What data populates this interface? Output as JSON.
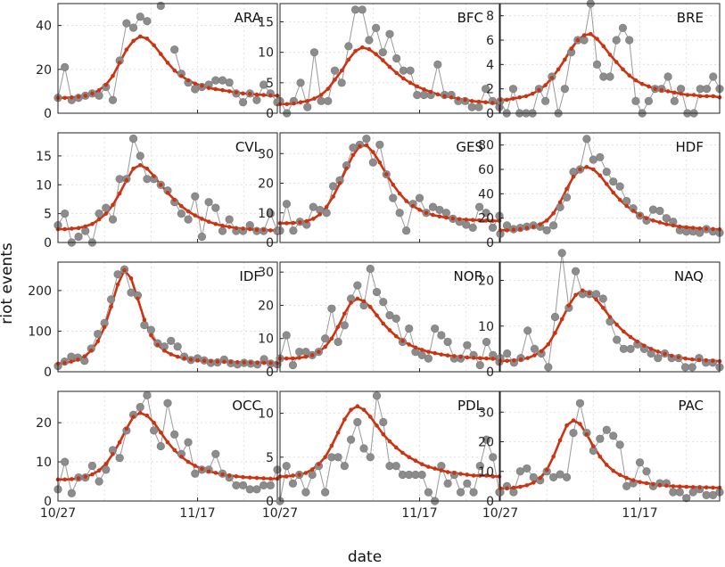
{
  "chart_data": {
    "type": "line",
    "ylabel": "riot events",
    "xlabel": "date",
    "x_tick_labels": [
      "10/27",
      "11/17"
    ],
    "x_tick_days": [
      0,
      21
    ],
    "day_range": [
      0,
      33
    ],
    "legend": "none",
    "grid": true,
    "series_names": [
      "observed",
      "fitted"
    ],
    "colors": {
      "observed": "#8c8c8c",
      "observed_line": "#999999",
      "fit": "#cc3311"
    },
    "panels": [
      {
        "name": "ARA",
        "ylim": [
          0,
          50
        ],
        "yticks": [
          0,
          20,
          40
        ],
        "observed": [
          7,
          21,
          6,
          7,
          8,
          9,
          8,
          12,
          6,
          24,
          41,
          39,
          44,
          42,
          null,
          49,
          null,
          29,
          18,
          14,
          11,
          12,
          13,
          15,
          15,
          14,
          9,
          5,
          9,
          6,
          13,
          9,
          5
        ],
        "fit": [
          7,
          7,
          7.2,
          7.5,
          8,
          9,
          10.5,
          13,
          17,
          23,
          29,
          33,
          35,
          34,
          31,
          27,
          23,
          19.5,
          17,
          15,
          13.5,
          12.5,
          11.5,
          11,
          10.5,
          10,
          9.5,
          9,
          8.8,
          8.5,
          8.3,
          8.1,
          8
        ]
      },
      {
        "name": "BFC",
        "ylim": [
          0,
          18
        ],
        "yticks": [
          0,
          5,
          10,
          15
        ],
        "observed": [
          2,
          0,
          2,
          5,
          1,
          10,
          2,
          2,
          7,
          5,
          11,
          17,
          17,
          12,
          14,
          10,
          13,
          9,
          7,
          7,
          3,
          3,
          3,
          8,
          3,
          3,
          2,
          2,
          1,
          1,
          4,
          2,
          1
        ],
        "fit": [
          1.5,
          1.5,
          1.6,
          1.8,
          2,
          2.4,
          3,
          4,
          5.5,
          7,
          8.8,
          10.2,
          10.8,
          10.5,
          9.7,
          8.7,
          7.6,
          6.6,
          5.7,
          5,
          4.4,
          3.9,
          3.5,
          3.1,
          2.8,
          2.6,
          2.4,
          2.2,
          2,
          1.9,
          1.8,
          1.7,
          1.6
        ]
      },
      {
        "name": "BRE",
        "ylim": [
          0,
          9
        ],
        "yticks": [
          0,
          2,
          4,
          6,
          8
        ],
        "observed": [
          1,
          0,
          2,
          0,
          0,
          0,
          2,
          1,
          3,
          0,
          2,
          5,
          6,
          6,
          9,
          4,
          3,
          3,
          6,
          7,
          6,
          1,
          0,
          1,
          2,
          2,
          3,
          1,
          2,
          0,
          0,
          2,
          2,
          3,
          2
        ],
        "fit": [
          1.1,
          1.1,
          1.2,
          1.3,
          1.4,
          1.6,
          1.9,
          2.3,
          2.9,
          3.6,
          4.4,
          5.3,
          6,
          6.4,
          6.5,
          6.1,
          5.5,
          4.8,
          4.2,
          3.6,
          3.1,
          2.7,
          2.4,
          2.2,
          2,
          1.9,
          1.8,
          1.7,
          1.6,
          1.5,
          1.5,
          1.4,
          1.4,
          1.4,
          1.3
        ]
      },
      {
        "name": "CVL",
        "ylim": [
          0,
          19
        ],
        "yticks": [
          0,
          5,
          10,
          15
        ],
        "observed": [
          3,
          5,
          0,
          1,
          2,
          0,
          5,
          6,
          4,
          11,
          11,
          18,
          15,
          11,
          11,
          10,
          9,
          7,
          5,
          4,
          8,
          1,
          7,
          6,
          2,
          4,
          2,
          2,
          3,
          2,
          2,
          5,
          2
        ],
        "fit": [
          2.3,
          2.3,
          2.4,
          2.5,
          2.8,
          3.2,
          4,
          5,
          6.5,
          8.5,
          10.8,
          12.8,
          13.4,
          12.8,
          11.5,
          10,
          8.6,
          7.4,
          6.3,
          5.4,
          4.7,
          4.1,
          3.6,
          3.2,
          2.9,
          2.7,
          2.5,
          2.4,
          2.3,
          2.2,
          2.2,
          2.1,
          2.1
        ]
      },
      {
        "name": "GES",
        "ylim": [
          0,
          37
        ],
        "yticks": [
          0,
          10,
          20,
          30
        ],
        "observed": [
          4,
          13,
          4,
          7,
          6,
          12,
          11,
          10,
          19,
          21,
          26,
          32,
          33,
          35,
          27,
          33,
          23,
          15,
          10,
          4,
          13,
          15,
          10,
          12,
          11,
          10,
          8,
          7,
          6,
          5,
          12,
          10,
          5,
          9
        ],
        "fit": [
          6.5,
          6.5,
          6.6,
          6.8,
          7.2,
          8,
          9.5,
          12,
          15.5,
          20,
          25,
          29.5,
          32.5,
          32.8,
          30.5,
          27,
          23,
          19.5,
          16.5,
          14,
          12.3,
          11,
          10,
          9.3,
          8.8,
          8.4,
          8.1,
          7.9,
          7.7,
          7.6,
          7.5,
          7.4,
          7.3,
          7.3
        ]
      },
      {
        "name": "HDF",
        "ylim": [
          0,
          90
        ],
        "yticks": [
          0,
          20,
          40,
          60,
          80
        ],
        "observed": [
          7,
          14,
          11,
          12,
          13,
          14,
          13,
          10,
          14,
          29,
          37,
          58,
          60,
          85,
          68,
          70,
          58,
          50,
          46,
          34,
          28,
          22,
          18,
          27,
          26,
          20,
          17,
          10,
          9,
          9,
          8,
          11,
          9,
          8
        ],
        "fit": [
          10,
          10,
          10.5,
          11,
          12,
          13,
          15,
          18,
          24,
          33,
          44,
          54,
          60,
          62,
          60,
          55,
          48,
          41,
          35,
          30,
          26,
          22.5,
          20,
          18,
          16.5,
          15,
          14,
          13,
          12.5,
          12,
          11.5,
          11.2,
          11,
          10.8
        ]
      },
      {
        "name": "IDF",
        "ylim": [
          0,
          270
        ],
        "yticks": [
          0,
          100,
          200
        ],
        "observed": [
          14,
          25,
          37,
          35,
          27,
          57,
          93,
          120,
          178,
          240,
          252,
          195,
          188,
          115,
          103,
          70,
          62,
          76,
          62,
          37,
          29,
          33,
          28,
          22,
          23,
          30,
          21,
          18,
          22,
          20,
          18,
          31,
          20,
          18
        ],
        "fit": [
          20,
          22,
          25,
          30,
          38,
          52,
          75,
          110,
          160,
          215,
          250,
          230,
          180,
          128,
          90,
          66,
          52,
          43,
          37,
          33,
          30,
          28,
          27,
          26,
          25,
          24.5,
          24,
          23.5,
          23,
          22.5,
          22.2,
          22,
          21.8,
          21.6
        ]
      },
      {
        "name": "NOR",
        "ylim": [
          0,
          33
        ],
        "yticks": [
          0,
          10,
          20,
          30
        ],
        "observed": [
          4,
          11,
          2,
          6,
          6,
          5,
          6,
          10,
          19,
          9,
          14,
          22,
          26,
          20,
          31,
          24,
          21,
          17,
          16,
          9,
          13,
          6,
          5,
          4,
          13,
          11,
          9,
          4,
          4,
          8,
          5,
          2,
          9,
          5,
          3
        ],
        "fit": [
          4,
          4,
          4,
          4.2,
          4.5,
          5,
          6,
          7.5,
          10,
          13.5,
          17.5,
          20.8,
          22,
          21.2,
          19.5,
          17,
          14.5,
          12.5,
          10.7,
          9.3,
          8.2,
          7.3,
          6.6,
          6,
          5.6,
          5.2,
          4.9,
          4.7,
          4.5,
          4.3,
          4.2,
          4.1,
          4,
          3.9,
          3.9
        ]
      },
      {
        "name": "NAQ",
        "ylim": [
          0,
          24
        ],
        "yticks": [
          0,
          10,
          20
        ],
        "observed": [
          3,
          4,
          2,
          3,
          9,
          5,
          4,
          1,
          12,
          26,
          14,
          22,
          17,
          17,
          17,
          16,
          11,
          7,
          5,
          5,
          6,
          5,
          4,
          3,
          4,
          3,
          3,
          1,
          1,
          3,
          2,
          2,
          1
        ],
        "fit": [
          2.4,
          2.4,
          2.5,
          2.7,
          3,
          3.6,
          4.5,
          6,
          8.5,
          11.5,
          14.5,
          16.8,
          17.8,
          17.2,
          15.8,
          14,
          12,
          10.3,
          8.8,
          7.6,
          6.6,
          5.7,
          5,
          4.4,
          3.9,
          3.5,
          3.2,
          2.9,
          2.7,
          2.6,
          2.5,
          2.4,
          2.3
        ]
      },
      {
        "name": "OCC",
        "ylim": [
          0,
          28
        ],
        "yticks": [
          0,
          10,
          20
        ],
        "observed": [
          3,
          10,
          2,
          6,
          6,
          9,
          5,
          8,
          13,
          11,
          18,
          22,
          24,
          27,
          18,
          14,
          25,
          17,
          12,
          15,
          7,
          8,
          8,
          12,
          7,
          6,
          4,
          4,
          3,
          3,
          4,
          4,
          8
        ],
        "fit": [
          5.5,
          5.5,
          5.6,
          5.8,
          6.2,
          6.8,
          7.8,
          9.5,
          12,
          15,
          18.5,
          21.5,
          22.5,
          21.8,
          20,
          17.5,
          15,
          13,
          11.3,
          10,
          9,
          8.2,
          7.6,
          7.2,
          6.8,
          6.5,
          6.3,
          6.1,
          6,
          5.9,
          5.8,
          5.7,
          5.7
        ]
      },
      {
        "name": "PDL",
        "ylim": [
          0,
          12.5
        ],
        "yticks": [
          0,
          5,
          10
        ],
        "observed": [
          0,
          4,
          2,
          3,
          1,
          3,
          4,
          1,
          5,
          5,
          4,
          7,
          9,
          6,
          5,
          12,
          9,
          4,
          4,
          3,
          3,
          3,
          3,
          1,
          0,
          4,
          2,
          3,
          1,
          2,
          1,
          4,
          7,
          5,
          1
        ],
        "fit": [
          2.8,
          2.8,
          2.9,
          3,
          3.2,
          3.6,
          4.2,
          5,
          6.3,
          7.8,
          9.3,
          10.4,
          10.8,
          10.4,
          9.6,
          8.6,
          7.6,
          6.8,
          6.1,
          5.5,
          5,
          4.6,
          4.2,
          3.9,
          3.7,
          3.5,
          3.3,
          3.2,
          3.1,
          3,
          2.9,
          2.9,
          2.9,
          2.8,
          2.8
        ]
      },
      {
        "name": "PAC",
        "ylim": [
          0,
          37
        ],
        "yticks": [
          0,
          10,
          20,
          30
        ],
        "observed": [
          3,
          5,
          3,
          10,
          11,
          8,
          7,
          10,
          8,
          9,
          8,
          23,
          33,
          23,
          17,
          21,
          24,
          22,
          19,
          5,
          6,
          13,
          10,
          5,
          6,
          6,
          3,
          3,
          1,
          3,
          4,
          2,
          2,
          3
        ],
        "fit": [
          4.3,
          4.3,
          4.5,
          4.8,
          5.3,
          6.2,
          7.8,
          10.5,
          15,
          20.5,
          25.5,
          27.2,
          26,
          22.5,
          18.5,
          15,
          12.2,
          10.2,
          8.8,
          7.8,
          7,
          6.4,
          6,
          5.7,
          5.4,
          5.2,
          5,
          4.9,
          4.8,
          4.7,
          4.6,
          4.6,
          4.5,
          4.5
        ]
      }
    ]
  }
}
